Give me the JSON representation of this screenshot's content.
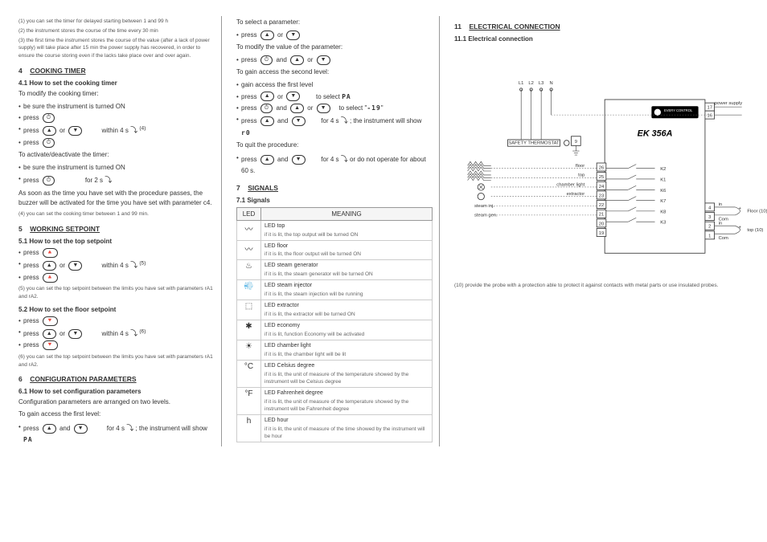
{
  "col1": {
    "fn1": "(1)    you can set the timer for delayed starting between 1 and 99 h",
    "fn2": "(2)    the instrument stores the course of the time every 30 min",
    "fn3": "(3)    the first time the instrument stores the course of the value (after a lack of power supply) will take place after 15 min the power supply has recovered, in order to ensure the course storing even if the lacks take place over and over again.",
    "s4": "4",
    "s4t": "COOKING TIMER",
    "s41": "4.1   How to set the cooking timer",
    "l1": "To modify the cooking timer:",
    "b1": "be sure the instrument is turned ON",
    "b2a": "press",
    "b2b": "⏱",
    "b3a": "press",
    "b3b": "▲",
    "b3c": "or",
    "b3d": "▼",
    "b3e": "within 4 s",
    "b3f": "(4)",
    "b4a": "press",
    "b4b": "⏱",
    "l2": "To activate/deactivate the timer:",
    "b5": "be sure the instrument is turned ON",
    "b6a": "press",
    "b6b": "⏱",
    "b6c": "for 2 s",
    "l3": "As soon as the time you have set with the procedure passes, the buzzer will be activated for the time you have set with parameter c4.",
    "fn4": "(4)    you can set the cooking timer between 1 and 99 min.",
    "s5": "5",
    "s5t": "WORKING SETPOINT",
    "s51": "5.1   How to set the top setpoint",
    "b7a": "press",
    "b7b": "🔺",
    "b8a": "press",
    "b8b": "▲",
    "b8c": "or",
    "b8d": "▼",
    "b8e": "within 4 s",
    "b8f": "(5)",
    "b9a": "press",
    "b9b": "🔺",
    "fn5": "(5)    you can set the top setpoint between the limits you have set with parameters rA1 and rA2.",
    "s52": "5.2   How to set the floor setpoint",
    "b10a": "press",
    "b10b": "🔻",
    "b11a": "press",
    "b11b": "▲",
    "b11c": "or",
    "b11d": "▼",
    "b11e": "within 4 s",
    "b11f": "(6)",
    "b12a": "press",
    "b12b": "🔻",
    "fn6": "(6)    you can set the top setpoint between the limits you have set with parameters rA1 and rA2.",
    "s6": "6",
    "s6t": "CONFIGURATION PARAMETERS",
    "s61": "6.1   How to set configuration parameters",
    "l4": "Configuration parameters are arranged on two levels.",
    "l5": "To gain access the first level:",
    "b13a": "press",
    "b13b": "▲",
    "b13c": "and",
    "b13d": "▼",
    "b13e": "for 4 s",
    "b13f": "; the instrument will show",
    "b13g": "PA"
  },
  "col2": {
    "l1": "To select a parameter:",
    "b1a": "press",
    "b1b": "▲",
    "b1c": "or",
    "b1d": "▼",
    "l2": "To modify the value of the parameter:",
    "b2a": "press",
    "b2b": "⏱",
    "b2c": "and",
    "b2d": "▲",
    "b2e": "or",
    "b2f": "▼",
    "l3": "To gain access the second level:",
    "b3": "gain access the first level",
    "b4a": "press",
    "b4b": "▲",
    "b4c": "or",
    "b4d": "▼",
    "b4e": "to select",
    "b4f": "PA",
    "b5a": "press",
    "b5b": "⏱",
    "b5c": "and",
    "b5d": "▲",
    "b5e": "or",
    "b5f": "▼",
    "b5g": "to select \"",
    "b5h": "-19",
    "b5i": "\"",
    "b6a": "press",
    "b6b": "▲",
    "b6c": "and",
    "b6d": "▼",
    "b6e": "for 4 s",
    "b6f": "; the instrument will show",
    "b6g": "r0",
    "l4": "To quit the procedure:",
    "b7a": "press",
    "b7b": "▲",
    "b7c": "and",
    "b7d": "▼",
    "b7e": "for 4 s",
    "b7f": " or do not operate for about 60 s.",
    "s7": "7",
    "s7t": "SIGNALS",
    "s71": "7.1   Signals",
    "th1": "LED",
    "th2": "MEANING",
    "rows": [
      {
        "icon": "〰",
        "t": "LED top",
        "s": "if it is lit, the top output will be turned ON"
      },
      {
        "icon": "〰",
        "t": "LED floor",
        "s": "if it is lit, the floor output will be turned ON"
      },
      {
        "icon": "♨",
        "t": "LED steam generator",
        "s": "if it is lit, the steam generator will be turned ON"
      },
      {
        "icon": "💨",
        "t": "LED steam injector",
        "s": "if it is lit, the steam injection will be running"
      },
      {
        "icon": "⬚",
        "t": "LED extractor",
        "s": "if it is lit, the extractor will be turned ON"
      },
      {
        "icon": "✱",
        "t": "LED economy",
        "s": "if it is lit, function Economy will be activated"
      },
      {
        "icon": "☀",
        "t": "LED chamber light",
        "s": "if it is lit, the chamber light will be lit"
      },
      {
        "icon": "°C",
        "t": "LED Celsius degree",
        "s": "if it is lit, the unit of measure of the temperature showed by the instrument will be Celsius degree"
      },
      {
        "icon": "°F",
        "t": "LED Fahrenheit degree",
        "s": "if it is lit, the unit of measure of the temperature showed by the instrument will be Fahrenheit degree"
      },
      {
        "icon": "h",
        "t": "LED hour",
        "s": "if it is lit, the unit of measure of the time showed by the instrument will be hour"
      }
    ]
  },
  "col3": {
    "s11": "11",
    "s11t": "ELECTRICAL CONNECTION",
    "s111": "11.1  Electrical connection",
    "diag": {
      "title": "EK 356A",
      "brand": "EVERY CONTROL",
      "top_labels": [
        "L1",
        "L2",
        "L3",
        "N"
      ],
      "safety": "SAFETY THERMOSTAT",
      "left": [
        "floor",
        "top",
        "chamber light",
        "extractor",
        "steam inj.",
        "steam gen."
      ],
      "right_top": "power supply",
      "right_terms": [
        "17",
        "16"
      ],
      "mid_terms": [
        "26",
        "25",
        "24",
        "23",
        "22",
        "21",
        "20",
        "19"
      ],
      "relays": [
        "K2",
        "K1",
        "K6",
        "K7",
        "K8",
        "K3"
      ],
      "right_io_terms": [
        "4",
        "3",
        "2",
        "1"
      ],
      "right_io_lbl": [
        "Floor (10)",
        "top (10)"
      ],
      "com": "Com",
      "in": "in",
      "gnd": "9"
    },
    "fn10": "(10)   provide the probe with a protection able to protect it against contacts with metal parts or use insulated probes."
  }
}
